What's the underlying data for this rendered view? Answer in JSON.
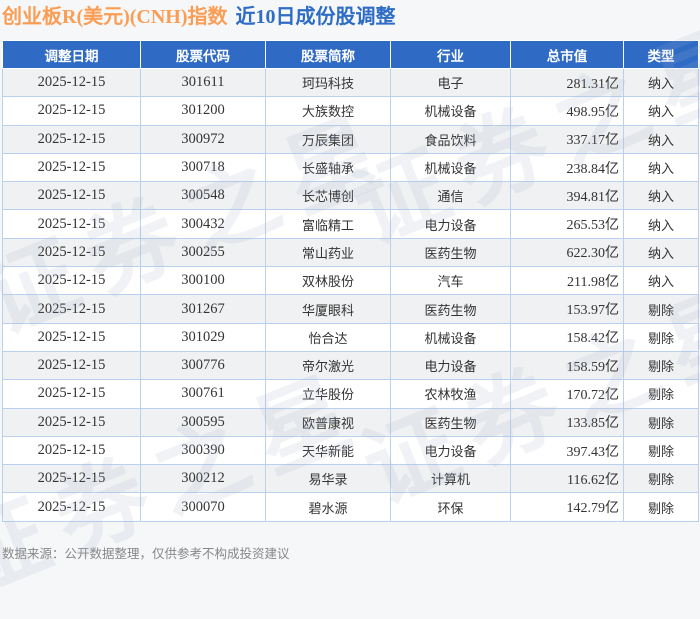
{
  "title": {
    "index_name": "创业板R(美元)(CNH)指数",
    "subtitle": "近10日成份股调整"
  },
  "chart_data": {
    "type": "table",
    "title": "创业板R(美元)(CNH)指数 近10日成份股调整",
    "columns": [
      "调整日期",
      "股票代码",
      "股票简称",
      "行业",
      "总市值",
      "类型"
    ],
    "rows": [
      [
        "2025-12-15",
        "301611",
        "珂玛科技",
        "电子",
        "281.31亿",
        "纳入"
      ],
      [
        "2025-12-15",
        "301200",
        "大族数控",
        "机械设备",
        "498.95亿",
        "纳入"
      ],
      [
        "2025-12-15",
        "300972",
        "万辰集团",
        "食品饮料",
        "337.17亿",
        "纳入"
      ],
      [
        "2025-12-15",
        "300718",
        "长盛轴承",
        "机械设备",
        "238.84亿",
        "纳入"
      ],
      [
        "2025-12-15",
        "300548",
        "长芯博创",
        "通信",
        "394.81亿",
        "纳入"
      ],
      [
        "2025-12-15",
        "300432",
        "富临精工",
        "电力设备",
        "265.53亿",
        "纳入"
      ],
      [
        "2025-12-15",
        "300255",
        "常山药业",
        "医药生物",
        "622.30亿",
        "纳入"
      ],
      [
        "2025-12-15",
        "300100",
        "双林股份",
        "汽车",
        "211.98亿",
        "纳入"
      ],
      [
        "2025-12-15",
        "301267",
        "华厦眼科",
        "医药生物",
        "153.97亿",
        "剔除"
      ],
      [
        "2025-12-15",
        "301029",
        "怡合达",
        "机械设备",
        "158.42亿",
        "剔除"
      ],
      [
        "2025-12-15",
        "300776",
        "帝尔激光",
        "电力设备",
        "158.59亿",
        "剔除"
      ],
      [
        "2025-12-15",
        "300761",
        "立华股份",
        "农林牧渔",
        "170.72亿",
        "剔除"
      ],
      [
        "2025-12-15",
        "300595",
        "欧普康视",
        "医药生物",
        "133.85亿",
        "剔除"
      ],
      [
        "2025-12-15",
        "300390",
        "天华新能",
        "电力设备",
        "397.43亿",
        "剔除"
      ],
      [
        "2025-12-15",
        "300212",
        "易华录",
        "计算机",
        "116.62亿",
        "剔除"
      ],
      [
        "2025-12-15",
        "300070",
        "碧水源",
        "环保",
        "142.79亿",
        "剔除"
      ]
    ]
  },
  "footer": {
    "note": "数据来源：公开数据整理，仅供参考不构成投资建议"
  },
  "watermark": {
    "text": "证券之星"
  },
  "colors": {
    "header_bg": "#2f6bc5",
    "title_orange": "#fa9e55",
    "title_blue": "#2e6cc6",
    "row_alt": "#f0f1f2",
    "table_border": "#b9d1ee",
    "text": "#333333",
    "footer_gray": "#878787",
    "page_bg": "#f6f7f8"
  }
}
